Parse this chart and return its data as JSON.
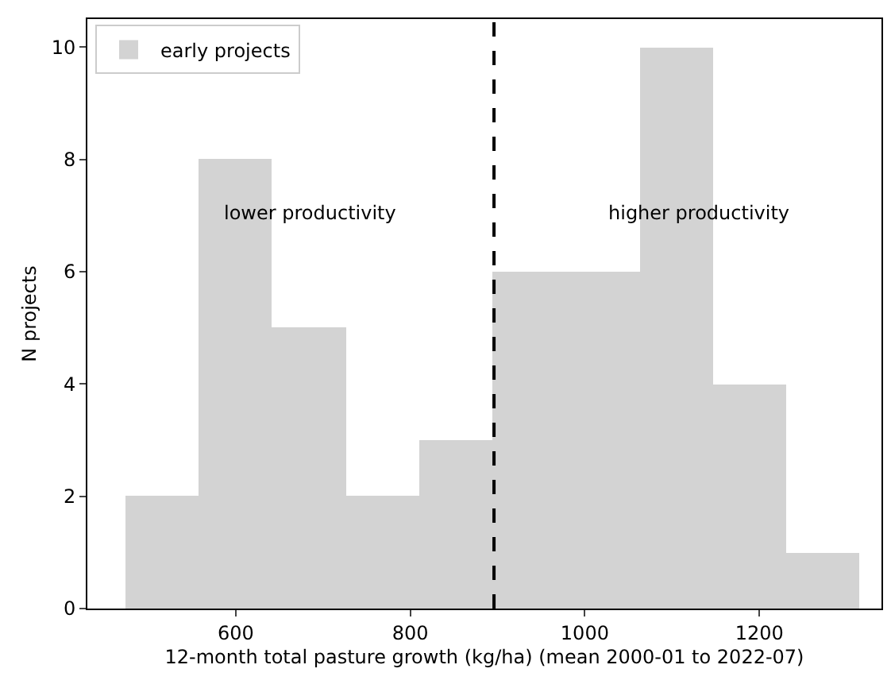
{
  "chart_data": {
    "type": "histogram",
    "xlabel": "12-month total pasture growth (kg/ha) (mean 2000-01 to 2022-07)",
    "ylabel": "N projects",
    "bins": [
      474,
      558,
      642,
      726,
      810,
      894,
      978,
      1063,
      1147,
      1231,
      1315
    ],
    "series": [
      {
        "name": "early projects",
        "color": "#d3d3d3",
        "values": [
          2,
          8,
          5,
          2,
          3,
          6,
          6,
          10,
          4,
          1
        ]
      }
    ],
    "xlim": [
      430,
      1340
    ],
    "ylim": [
      0,
      10.5
    ],
    "xticks": [
      600,
      800,
      1000,
      1200
    ],
    "yticks": [
      0,
      2,
      4,
      6,
      8,
      10
    ],
    "ref_lines": [
      {
        "axis": "x",
        "value": 896,
        "color": "#000000",
        "line_style": "dashed"
      }
    ],
    "annotations": [
      "lower productivity",
      "higher productivity"
    ],
    "legend": "top left"
  }
}
